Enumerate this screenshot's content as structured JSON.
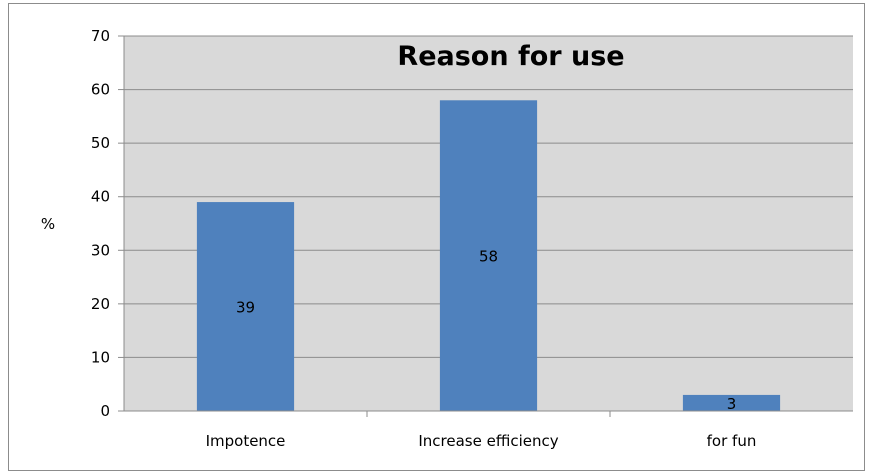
{
  "chart_data": {
    "type": "bar",
    "title": "Reason for use",
    "ylabel": "%",
    "xlabel": "",
    "categories": [
      "Impotence",
      "Increase efficiency",
      "for fun"
    ],
    "values": [
      39,
      58,
      3
    ],
    "data_labels": [
      "39",
      "58",
      "3"
    ],
    "ylim": [
      0,
      70
    ],
    "yticks": [
      0,
      10,
      20,
      30,
      40,
      50,
      60,
      70
    ],
    "grid": true,
    "legend": "none",
    "colors": {
      "bar": "#4f81bd",
      "plot_background": "#d9d9d9",
      "gridline": "#8c8c8c"
    }
  }
}
